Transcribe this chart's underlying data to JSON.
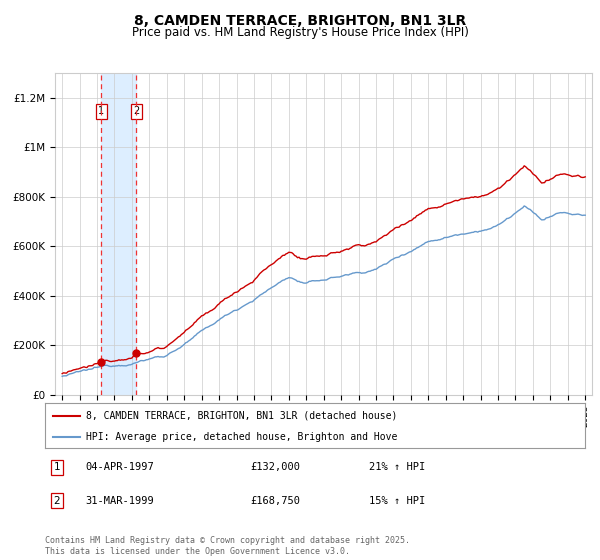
{
  "title": "8, CAMDEN TERRACE, BRIGHTON, BN1 3LR",
  "subtitle": "Price paid vs. HM Land Registry's House Price Index (HPI)",
  "ylim": [
    0,
    1300000
  ],
  "yticks": [
    0,
    200000,
    400000,
    600000,
    800000,
    1000000,
    1200000
  ],
  "ytick_labels": [
    "£0",
    "£200K",
    "£400K",
    "£600K",
    "£800K",
    "£1M",
    "£1.2M"
  ],
  "xlim_start": 1994.6,
  "xlim_end": 2025.4,
  "purchase1_year": 1997.25,
  "purchase1_price": 132000,
  "purchase1_label": "1",
  "purchase1_date": "04-APR-1997",
  "purchase1_amount": "£132,000",
  "purchase1_pct": "21% ↑ HPI",
  "purchase2_year": 1999.25,
  "purchase2_price": 168750,
  "purchase2_label": "2",
  "purchase2_date": "31-MAR-1999",
  "purchase2_amount": "£168,750",
  "purchase2_pct": "15% ↑ HPI",
  "red_line_color": "#cc0000",
  "blue_line_color": "#6699cc",
  "shade_color": "#ddeeff",
  "dashed_color": "#ee3333",
  "grid_color": "#cccccc",
  "bg_color": "#ffffff",
  "legend1": "8, CAMDEN TERRACE, BRIGHTON, BN1 3LR (detached house)",
  "legend2": "HPI: Average price, detached house, Brighton and Hove",
  "footnote": "Contains HM Land Registry data © Crown copyright and database right 2025.\nThis data is licensed under the Open Government Licence v3.0."
}
